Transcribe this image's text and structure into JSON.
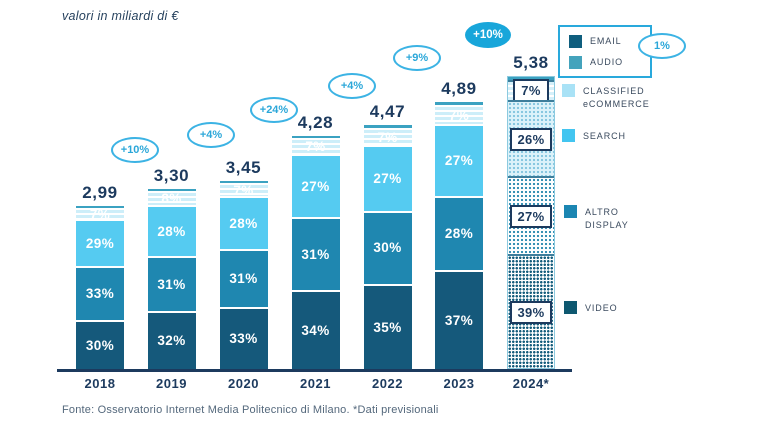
{
  "title": "valori in miliardi di €",
  "footer": "Fonte: Osservatorio Internet Media Politecnico di Milano. *Dati previsionali",
  "legend": {
    "callout": "1%",
    "email": {
      "label": "EMAIL",
      "color": "#0F5E7E"
    },
    "audio": {
      "label": "AUDIO",
      "color": "#44A3BC"
    },
    "classified": {
      "label1": "CLASSIFIED",
      "label2": "eCOMMERCE",
      "color": "#A9E2F6"
    },
    "search": {
      "label": "SEARCH",
      "color": "#43C5F0"
    },
    "display": {
      "label1": "ALTRO",
      "label2": "DISPLAY",
      "color": "#1B86B2"
    },
    "video": {
      "label": "VIDEO",
      "color": "#0E5870"
    }
  },
  "chart_data": {
    "type": "bar",
    "stacked": true,
    "title": "valori in miliardi di €",
    "unit": "miliardi di €",
    "categories": [
      "2018",
      "2019",
      "2020",
      "2021",
      "2022",
      "2023",
      "2024*"
    ],
    "totals": [
      2.99,
      3.3,
      3.45,
      4.28,
      4.47,
      4.89,
      5.38
    ],
    "totals_display": [
      "2,99",
      "3,30",
      "3,45",
      "4,28",
      "4,47",
      "4,89",
      "5,38"
    ],
    "growth": [
      null,
      "+10%",
      "+4%",
      "+24%",
      "+4%",
      "+9%",
      "+10%"
    ],
    "forecast_index": 6,
    "series": [
      {
        "name": "VIDEO",
        "color": "#15597B",
        "pct": [
          30,
          32,
          33,
          34,
          35,
          37,
          39
        ]
      },
      {
        "name": "ALTRO DISPLAY",
        "color": "#1F87B0",
        "pct": [
          33,
          31,
          31,
          31,
          30,
          28,
          27
        ]
      },
      {
        "name": "SEARCH",
        "color": "#55CBF1",
        "pct": [
          29,
          28,
          28,
          27,
          27,
          27,
          26
        ]
      },
      {
        "name": "CLASSIFIED eCOMMERCE",
        "color": "#CDEEF9",
        "pct": [
          7,
          8,
          7,
          7,
          7,
          7,
          7
        ]
      },
      {
        "name": "EMAIL + AUDIO",
        "color": "#3BA2C1",
        "pct": [
          1,
          1,
          1,
          1,
          1,
          1,
          1
        ]
      }
    ]
  }
}
